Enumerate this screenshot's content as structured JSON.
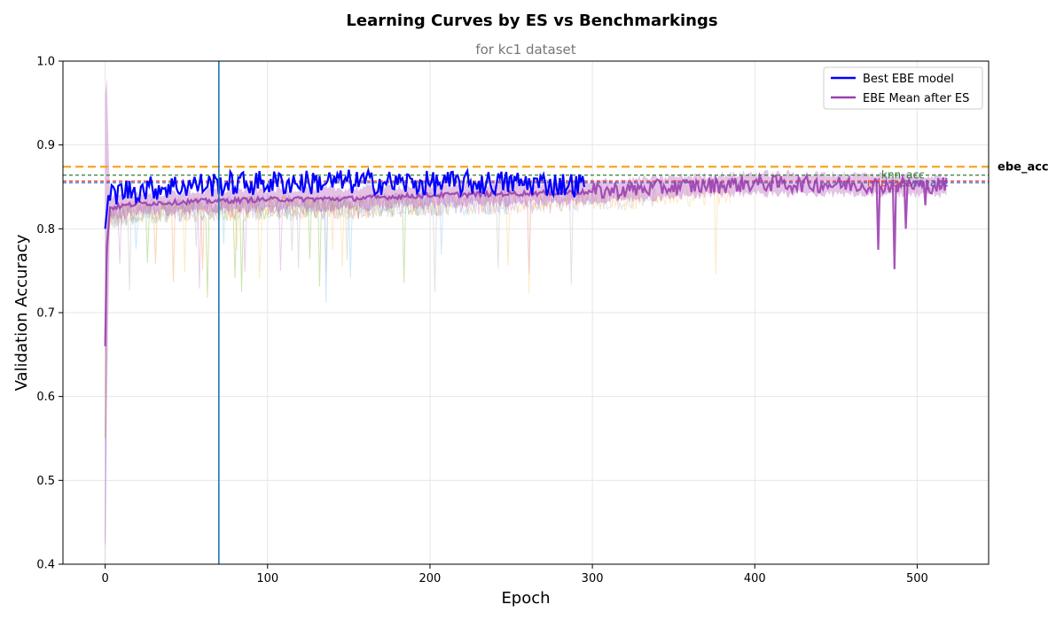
{
  "chart_data": {
    "type": "line",
    "title": "Learning Curves by ES vs Benchmarkings",
    "subtitle": "for kc1 dataset",
    "xlabel": "Epoch",
    "ylabel": "Validation Accuracy",
    "xlim": [
      -26,
      544
    ],
    "ylim": [
      0.4,
      1.0
    ],
    "x_ticks": [
      0,
      100,
      200,
      300,
      400,
      500
    ],
    "y_ticks": [
      0.4,
      0.5,
      0.6,
      0.7,
      0.8,
      0.9,
      1.0
    ],
    "grid": true,
    "legend_position": "top-right",
    "es_epoch_marker": 70,
    "series": [
      {
        "name": "Best EBE model",
        "color": "#0000ff",
        "epochs": [
          0,
          295
        ],
        "anchors": [
          [
            0,
            0.8
          ],
          [
            2,
            0.84
          ],
          [
            10,
            0.845
          ],
          [
            50,
            0.852
          ],
          [
            100,
            0.855
          ],
          [
            150,
            0.856
          ],
          [
            200,
            0.854
          ],
          [
            250,
            0.855
          ],
          [
            295,
            0.852
          ]
        ]
      },
      {
        "name": "EBE Mean after ES",
        "color": "#9b40b0",
        "epochs": [
          0,
          518
        ],
        "anchors": [
          [
            0,
            0.66
          ],
          [
            1,
            0.78
          ],
          [
            3,
            0.825
          ],
          [
            20,
            0.83
          ],
          [
            60,
            0.833
          ],
          [
            100,
            0.835
          ],
          [
            150,
            0.836
          ],
          [
            200,
            0.84
          ],
          [
            250,
            0.842
          ],
          [
            300,
            0.844
          ],
          [
            350,
            0.85
          ],
          [
            400,
            0.854
          ],
          [
            450,
            0.853
          ],
          [
            500,
            0.852
          ],
          [
            518,
            0.852
          ]
        ],
        "dips": [
          [
            476,
            0.775
          ],
          [
            486,
            0.752
          ],
          [
            493,
            0.8
          ],
          [
            505,
            0.828
          ]
        ],
        "band_halfwidth": 0.012
      }
    ],
    "reference_lines": [
      {
        "label": "ebe_acc",
        "value": 0.874,
        "color": "#f5a623"
      },
      {
        "label": "knn_acc",
        "value": 0.864,
        "color": "#2e7d32"
      },
      {
        "label": "mlp_acc",
        "value": 0.857,
        "color": "#e53935"
      },
      {
        "label": "svm_acc",
        "value": 0.855,
        "color": "#3f51b5"
      }
    ],
    "background_runs_colors": [
      "#f7a35c",
      "#8bc34a",
      "#90caf9",
      "#ce93d8",
      "#bdbdbd",
      "#ffcc80"
    ]
  }
}
